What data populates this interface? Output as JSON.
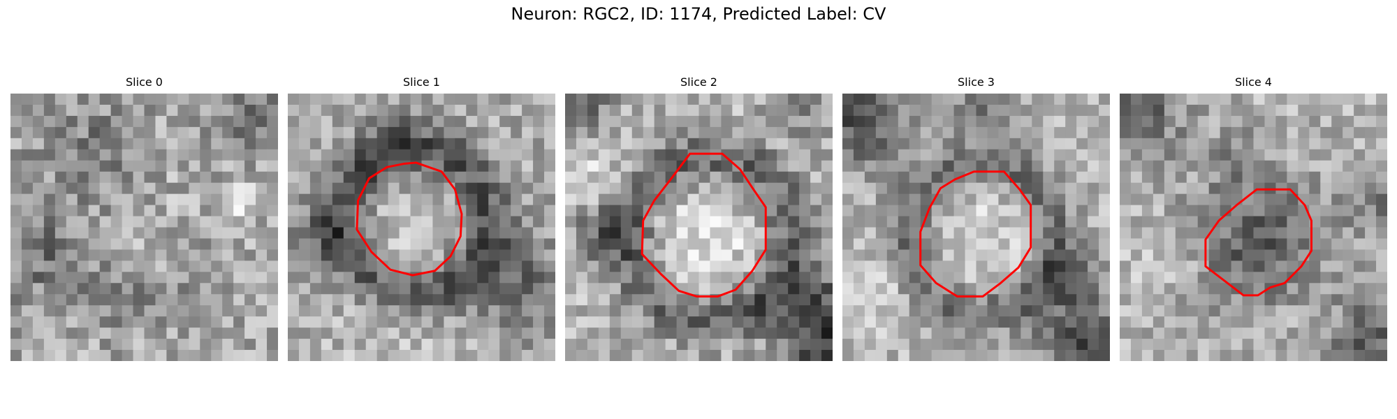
{
  "figure": {
    "title": "Neuron: RGC2, ID: 1174, Predicted Label: CV",
    "contour_color": "#ff0000",
    "colormap": "gray"
  },
  "panels": [
    {
      "label": "Slice 0",
      "has_contour": false
    },
    {
      "label": "Slice 1",
      "has_contour": true
    },
    {
      "label": "Slice 2",
      "has_contour": true
    },
    {
      "label": "Slice 3",
      "has_contour": true
    },
    {
      "label": "Slice 4",
      "has_contour": true
    }
  ]
}
